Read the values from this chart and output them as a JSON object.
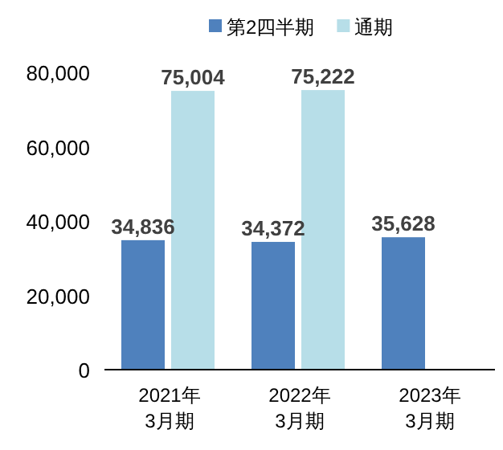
{
  "chart_data": {
    "type": "bar",
    "categories": [
      "2021年\n3月期",
      "2022年\n3月期",
      "2023年\n3月期"
    ],
    "series": [
      {
        "name": "第2四半期",
        "color": "#4f81bd",
        "values": [
          34836,
          34372,
          35628
        ],
        "value_labels": [
          "34,836",
          "34,372",
          "35,628"
        ]
      },
      {
        "name": "通期",
        "color": "#b7dee8",
        "values": [
          75004,
          75222,
          null
        ],
        "value_labels": [
          "75,004",
          "75,222",
          null
        ]
      }
    ],
    "ylim": [
      0,
      80000
    ],
    "yticks": [
      {
        "value": 0,
        "label": "0"
      },
      {
        "value": 20000,
        "label": "20,000"
      },
      {
        "value": 40000,
        "label": "40,000"
      },
      {
        "value": 60000,
        "label": "60,000"
      },
      {
        "value": 80000,
        "label": "80,000"
      }
    ],
    "legend": "top",
    "grid": false
  }
}
